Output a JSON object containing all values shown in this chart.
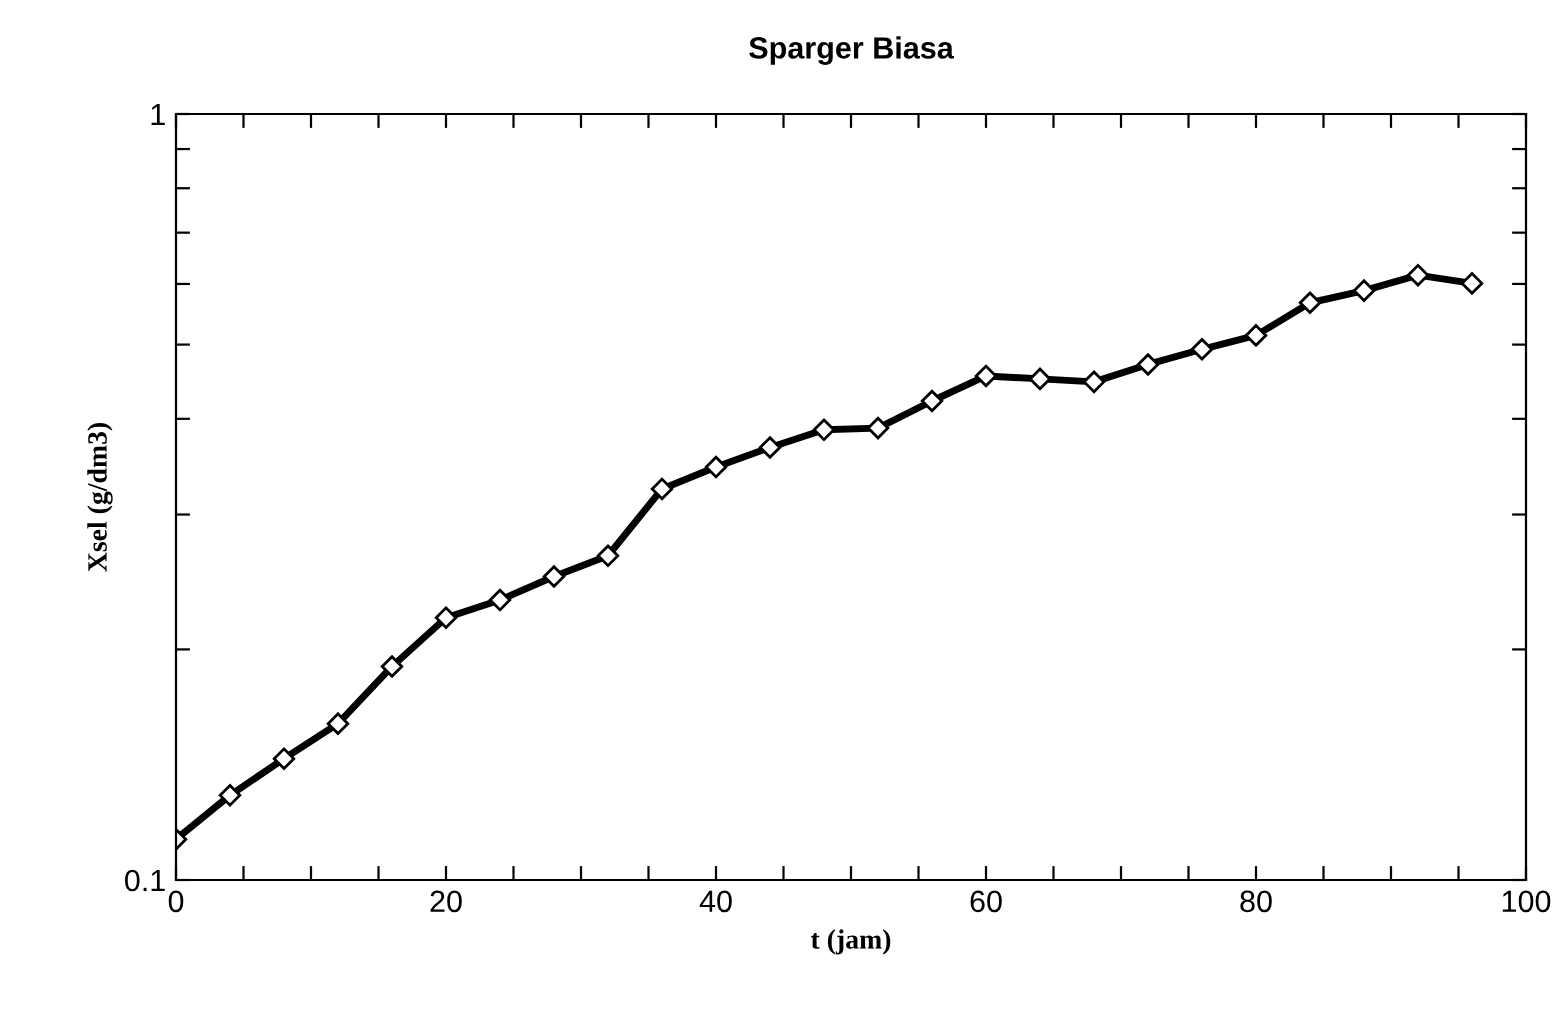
{
  "chart_data": {
    "type": "line",
    "title": "Sparger Biasa",
    "xlabel": "t (jam)",
    "ylabel": "Xsel (g/dm3)",
    "x": [
      0,
      4,
      8,
      12,
      16,
      20,
      24,
      28,
      32,
      36,
      40,
      44,
      48,
      52,
      56,
      60,
      64,
      68,
      72,
      76,
      80,
      84,
      88,
      92,
      96
    ],
    "series": [
      {
        "color": "#000000",
        "values": [
          0.113,
          0.129,
          0.144,
          0.16,
          0.19,
          0.22,
          0.232,
          0.249,
          0.265,
          0.324,
          0.346,
          0.367,
          0.387,
          0.389,
          0.422,
          0.455,
          0.451,
          0.447,
          0.471,
          0.493,
          0.514,
          0.567,
          0.588,
          0.616,
          0.601
        ]
      }
    ],
    "log": "y",
    "xlim": [
      0,
      100
    ],
    "ylim": [
      0.1,
      1
    ],
    "xticks": [
      0,
      {
        "value": 5,
        "label": null
      },
      {
        "value": 10,
        "label": null
      },
      {
        "value": 15,
        "label": null
      },
      20,
      {
        "value": 25,
        "label": null
      },
      {
        "value": 30,
        "label": null
      },
      {
        "value": 35,
        "label": null
      },
      40,
      {
        "value": 45,
        "label": null
      },
      {
        "value": 50,
        "label": null
      },
      {
        "value": 55,
        "label": null
      },
      60,
      {
        "value": 65,
        "label": null
      },
      {
        "value": 70,
        "label": null
      },
      {
        "value": 75,
        "label": null
      },
      80,
      {
        "value": 85,
        "label": null
      },
      {
        "value": 90,
        "label": null
      },
      {
        "value": 95,
        "label": null
      },
      100
    ],
    "yticks": [
      0.1,
      {
        "value": 0.2,
        "label": null
      },
      {
        "value": 0.3,
        "label": null
      },
      {
        "value": 0.4,
        "label": null
      },
      {
        "value": 0.5,
        "label": null
      },
      {
        "value": 0.6,
        "label": null
      },
      {
        "value": 0.7,
        "label": null
      },
      {
        "value": 0.8,
        "label": null
      },
      {
        "value": 0.9,
        "label": null
      },
      1
    ],
    "grid": false,
    "legend": false,
    "marker": "diamond",
    "line_style": "solid"
  }
}
